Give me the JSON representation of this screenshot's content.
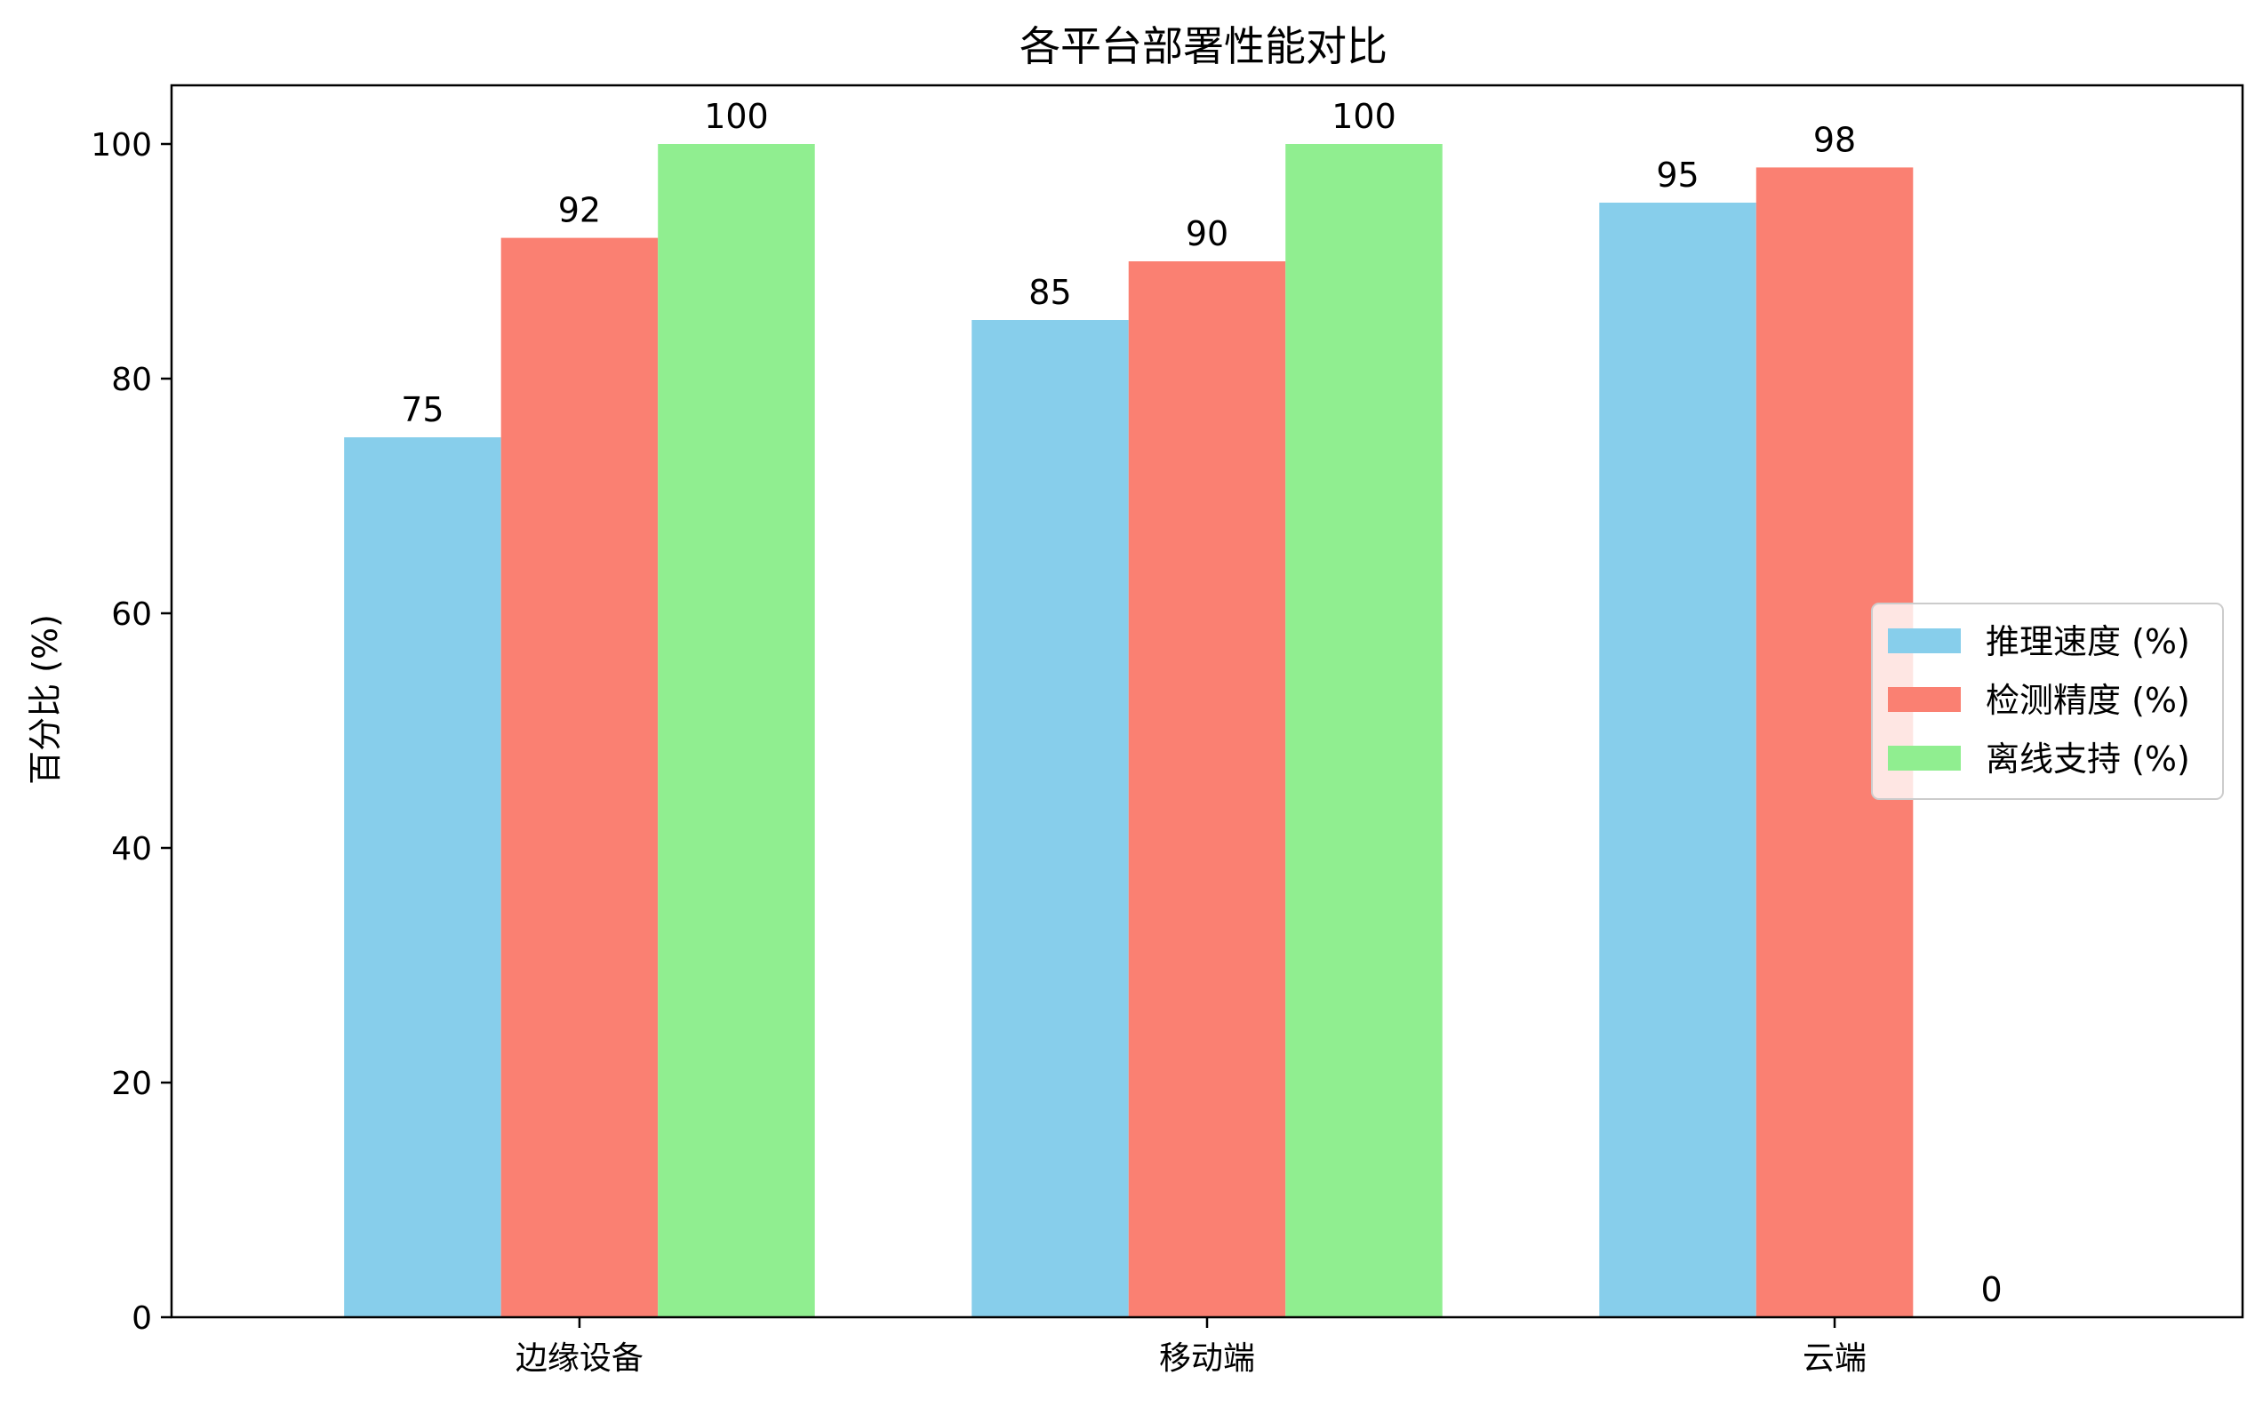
{
  "chart_data": {
    "type": "bar",
    "title": "各平台部署性能对比",
    "xlabel": "",
    "ylabel": "百分比 (%)",
    "categories": [
      "边缘设备",
      "移动端",
      "云端"
    ],
    "series": [
      {
        "name": "推理速度 (%)",
        "values": [
          75,
          85,
          95
        ],
        "color": "#87CEEB"
      },
      {
        "name": "检测精度 (%)",
        "values": [
          92,
          90,
          98
        ],
        "color": "#FA8072"
      },
      {
        "name": "离线支持 (%)",
        "values": [
          100,
          100,
          0
        ],
        "color": "#90EE90"
      }
    ],
    "ylim": [
      0,
      105
    ],
    "yticks": [
      0,
      20,
      40,
      60,
      80,
      100
    ],
    "grid": false,
    "legend": "center-right",
    "value_labels": true
  }
}
